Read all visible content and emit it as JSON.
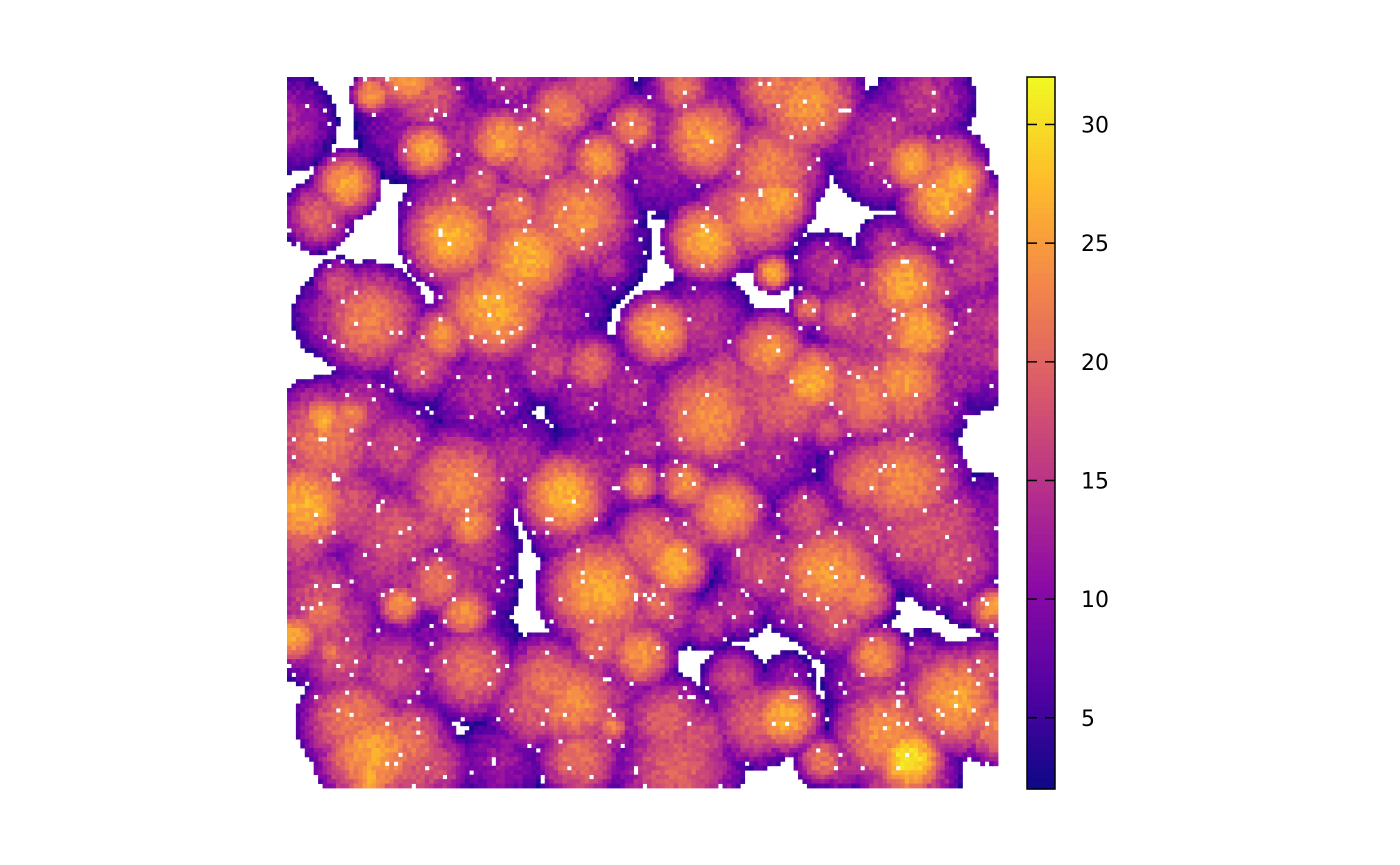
{
  "chart_data": {
    "type": "heatmap",
    "title": "",
    "xlabel": "",
    "ylabel": "",
    "axes_shown": false,
    "raster": {
      "ncol": 160,
      "nrow": 160,
      "na_color": "#ffffff",
      "value_range": [
        2,
        32
      ],
      "description_of_values": "canopy height model; scattered tree crowns with higher values at crown centres, gaps are NA"
    },
    "colorbar": {
      "palette": "plasma",
      "zlim": [
        2,
        32
      ],
      "ticks": [
        5,
        10,
        15,
        20,
        25,
        30
      ],
      "tick_labels": [
        "5",
        "10",
        "15",
        "20",
        "25",
        "30"
      ],
      "stops": [
        "#0d0887",
        "#5402a3",
        "#8b0aa5",
        "#b93289",
        "#db5c68",
        "#f48849",
        "#febd2a",
        "#f0f921"
      ],
      "placement": "right"
    }
  }
}
